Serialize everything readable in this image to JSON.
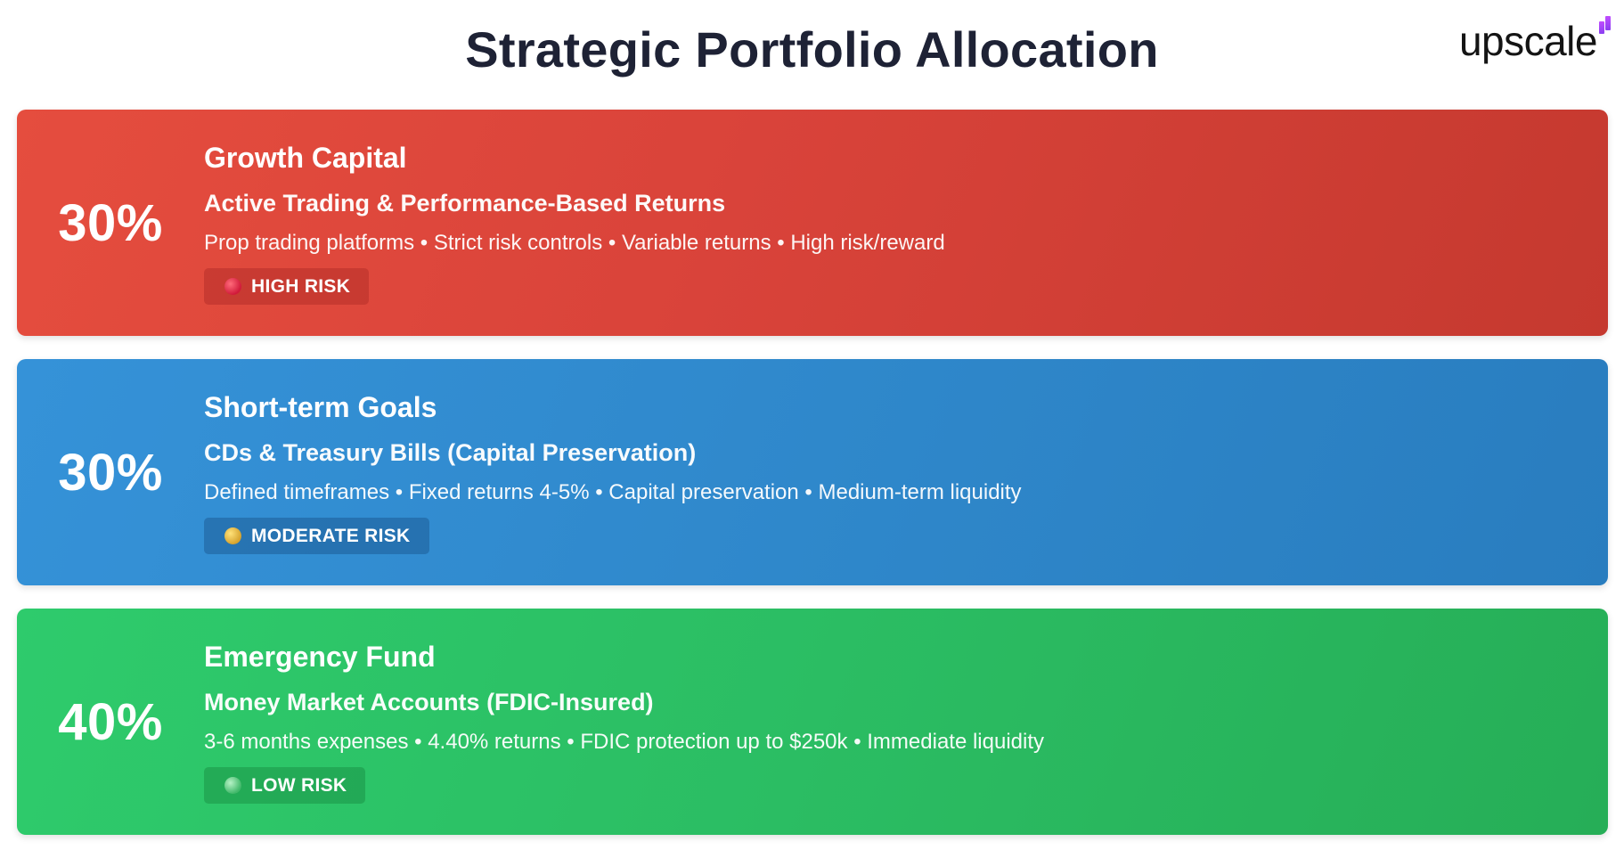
{
  "header": {
    "title": "Strategic Portfolio Allocation",
    "logo_text": "upscale"
  },
  "allocations": [
    {
      "percent": "30%",
      "heading": "Growth Capital",
      "subheading": "Active Trading & Performance-Based Returns",
      "description": "Prop trading platforms • Strict risk controls • Variable returns • High risk/reward",
      "risk_label": "HIGH RISK",
      "color": "#e54d3e",
      "risk_dot_color": "#e0243f"
    },
    {
      "percent": "30%",
      "heading": "Short-term Goals",
      "subheading": "CDs & Treasury Bills (Capital Preservation)",
      "description": "Defined timeframes • Fixed returns 4-5% • Capital preservation • Medium-term liquidity",
      "risk_label": "MODERATE RISK",
      "color": "#3592d8",
      "risk_dot_color": "#e8b94a"
    },
    {
      "percent": "40%",
      "heading": "Emergency Fund",
      "subheading": "Money Market Accounts (FDIC-Insured)",
      "description": "3-6 months expenses • 4.40% returns • FDIC protection up to $250k • Immediate liquidity",
      "risk_label": "LOW RISK",
      "color": "#2ecb6c",
      "risk_dot_color": "#7ddc98"
    }
  ],
  "colors": {
    "title": "#1e2235",
    "logo_accent": "#b04cff"
  }
}
